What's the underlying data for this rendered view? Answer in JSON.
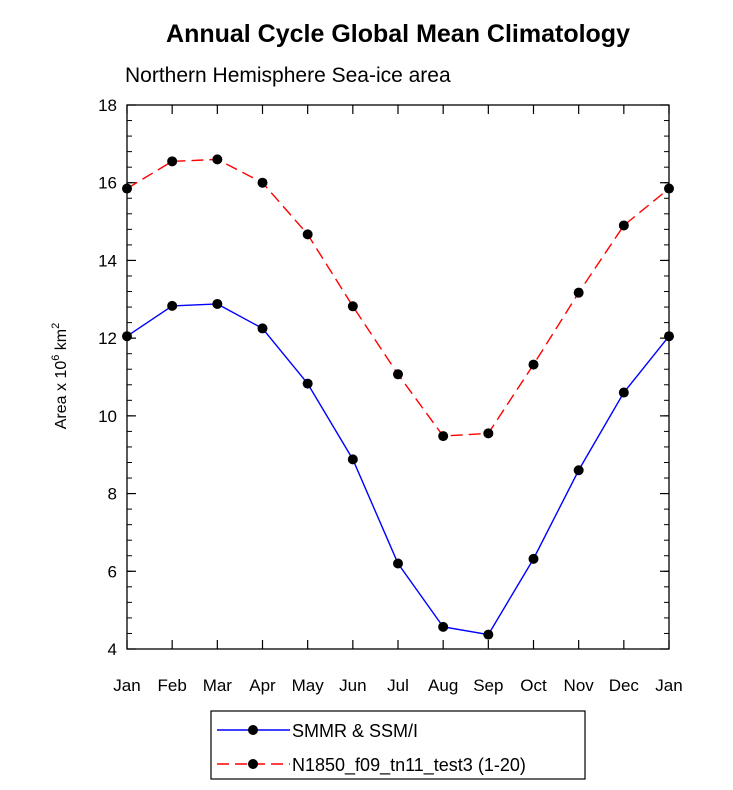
{
  "chart_data": {
    "type": "line",
    "title": "Annual Cycle Global Mean Climatology",
    "subtitle": "Northern Hemisphere Sea-ice area",
    "xlabel": "",
    "ylabel": {
      "base": "Area x 10",
      "exponent": "6",
      "unit": " km",
      "unit_exponent": "2"
    },
    "categories": [
      "Jan",
      "Feb",
      "Mar",
      "Apr",
      "May",
      "Jun",
      "Jul",
      "Aug",
      "Sep",
      "Oct",
      "Nov",
      "Dec",
      "Jan"
    ],
    "ylim": [
      4,
      18
    ],
    "yticks": [
      4,
      6,
      8,
      10,
      12,
      14,
      16,
      18
    ],
    "yminor_step": 0.4,
    "series": [
      {
        "name": "SMMR & SSM/I",
        "color": "#0000ff",
        "style": "solid",
        "marker": "circle",
        "values": [
          12.05,
          12.83,
          12.88,
          12.25,
          10.83,
          8.88,
          6.2,
          4.57,
          4.37,
          6.32,
          8.6,
          10.6,
          12.05
        ]
      },
      {
        "name": "N1850_f09_tn11_test3 (1-20)",
        "color": "#ff0000",
        "style": "dashed",
        "marker": "circle",
        "values": [
          15.85,
          16.55,
          16.6,
          16.0,
          14.67,
          12.82,
          11.07,
          9.48,
          9.55,
          11.32,
          13.17,
          14.9,
          15.85
        ]
      }
    ],
    "legend_position": "bottom-center"
  }
}
